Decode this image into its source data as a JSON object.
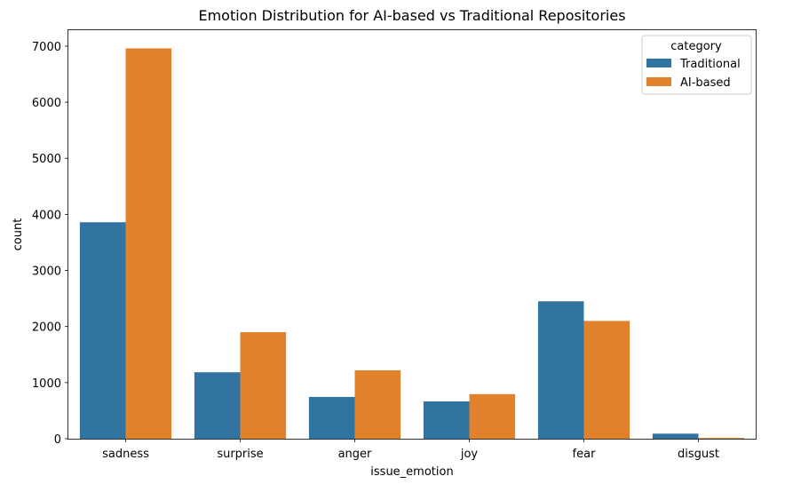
{
  "chart_data": {
    "type": "bar",
    "title": "Emotion Distribution for AI-based vs Traditional Repositories",
    "xlabel": "issue_emotion",
    "ylabel": "count",
    "categories": [
      "sadness",
      "surprise",
      "anger",
      "joy",
      "fear",
      "disgust"
    ],
    "series": [
      {
        "name": "Traditional",
        "color": "#3274a1",
        "values": [
          3860,
          1185,
          745,
          665,
          2450,
          90
        ]
      },
      {
        "name": "AI-based",
        "color": "#e1812c",
        "values": [
          6960,
          1900,
          1220,
          795,
          2100,
          15
        ]
      }
    ],
    "ylim": [
      0,
      7300
    ],
    "yticks": [
      0,
      1000,
      2000,
      3000,
      4000,
      5000,
      6000,
      7000
    ],
    "legend": {
      "title": "category",
      "position": "top-right"
    },
    "grid": false
  }
}
